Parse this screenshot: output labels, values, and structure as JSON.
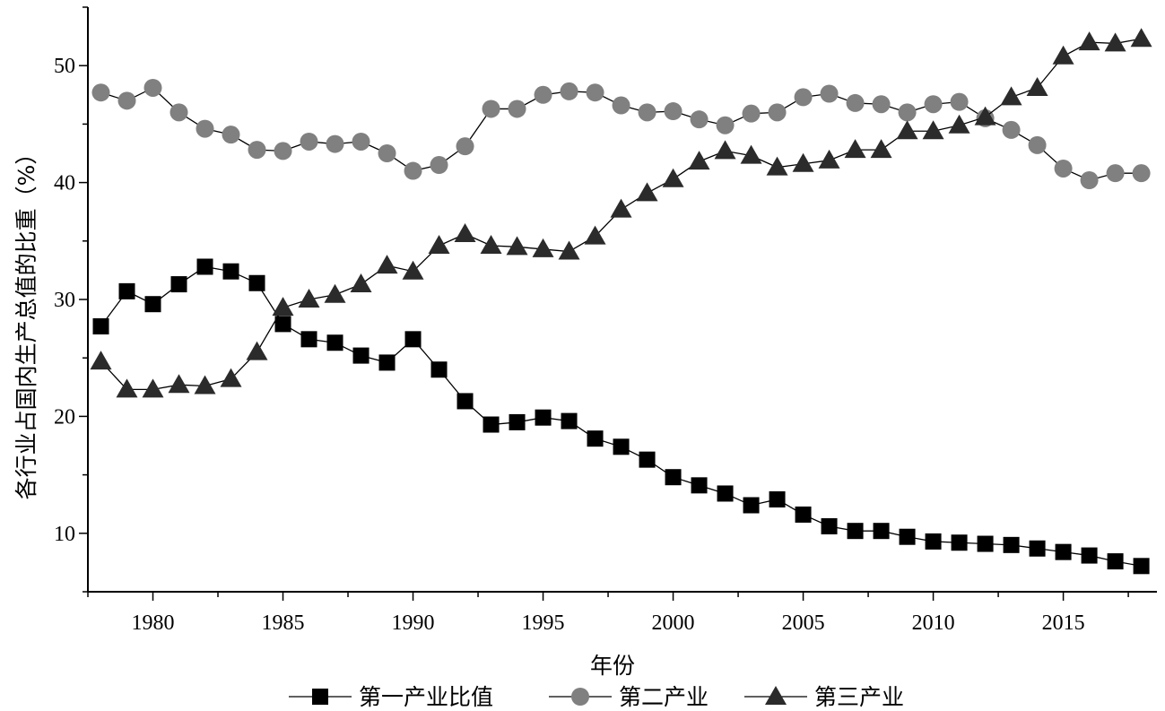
{
  "chart_data": {
    "type": "line",
    "title": "",
    "xlabel": "年份",
    "ylabel": "各行业占国内生产总值的比重（%）",
    "xlim": [
      1977.5,
      2018.6
    ],
    "ylim": [
      5,
      55
    ],
    "x_ticks": [
      1980,
      1985,
      1990,
      1995,
      2000,
      2005,
      2010,
      2015
    ],
    "y_ticks": [
      10,
      20,
      30,
      40,
      50
    ],
    "grid": false,
    "legend_position": "bottom",
    "x": [
      1978,
      1979,
      1980,
      1981,
      1982,
      1983,
      1984,
      1985,
      1986,
      1987,
      1988,
      1989,
      1990,
      1991,
      1992,
      1993,
      1994,
      1995,
      1996,
      1997,
      1998,
      1999,
      2000,
      2001,
      2002,
      2003,
      2004,
      2005,
      2006,
      2007,
      2008,
      2009,
      2010,
      2011,
      2012,
      2013,
      2014,
      2015,
      2016,
      2017,
      2018
    ],
    "series": [
      {
        "name": "第一产业比值",
        "marker": "square",
        "color": "#000000",
        "values": [
          27.7,
          30.7,
          29.6,
          31.3,
          32.8,
          32.4,
          31.4,
          27.9,
          26.6,
          26.3,
          25.2,
          24.6,
          26.6,
          24.0,
          21.3,
          19.3,
          19.5,
          19.9,
          19.6,
          18.1,
          17.4,
          16.3,
          14.8,
          14.1,
          13.4,
          12.4,
          12.9,
          11.6,
          10.6,
          10.2,
          10.2,
          9.7,
          9.3,
          9.2,
          9.1,
          9.0,
          8.7,
          8.4,
          8.1,
          7.6,
          7.2
        ]
      },
      {
        "name": "第二产业",
        "marker": "circle",
        "color": "#808080",
        "values": [
          47.7,
          47.0,
          48.1,
          46.0,
          44.6,
          44.1,
          42.8,
          42.7,
          43.5,
          43.3,
          43.5,
          42.5,
          41.0,
          41.5,
          43.1,
          46.3,
          46.3,
          47.5,
          47.8,
          47.7,
          46.6,
          46.0,
          46.1,
          45.4,
          44.9,
          45.9,
          46.0,
          47.3,
          47.6,
          46.8,
          46.7,
          46.0,
          46.7,
          46.9,
          45.5,
          44.5,
          43.2,
          41.2,
          40.2,
          40.8,
          40.8
        ]
      },
      {
        "name": "第三产业",
        "marker": "triangle",
        "color": "#2b2b2b",
        "values": [
          24.7,
          22.3,
          22.3,
          22.7,
          22.6,
          23.2,
          25.5,
          29.3,
          30.0,
          30.4,
          31.3,
          32.9,
          32.4,
          34.6,
          35.6,
          34.6,
          34.5,
          34.3,
          34.1,
          35.4,
          37.7,
          39.1,
          40.3,
          41.8,
          42.7,
          42.3,
          41.3,
          41.6,
          41.9,
          42.8,
          42.8,
          44.4,
          44.4,
          44.9,
          45.6,
          47.3,
          48.1,
          50.8,
          52.0,
          51.9,
          52.3
        ]
      }
    ]
  }
}
